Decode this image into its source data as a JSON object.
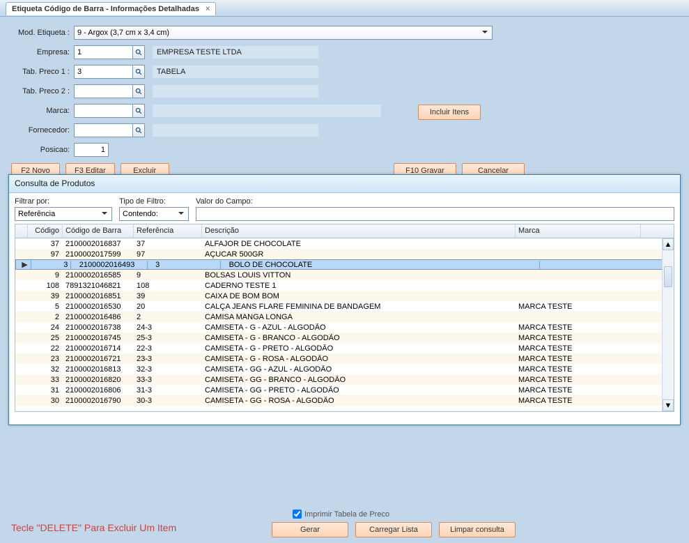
{
  "tab_title": "Etiqueta Código de Barra - Informações Detalhadas",
  "form": {
    "mod_label": "Mod. Etiqueta :",
    "mod_value": "9 - Argox (3,7 cm x 3,4 cm)",
    "empresa_label": "Empresa:",
    "empresa_code": "1",
    "empresa_desc": "EMPRESA TESTE LTDA",
    "tab1_label": "Tab. Preco 1 :",
    "tab1_code": "3",
    "tab1_desc": "TABELA",
    "tab2_label": "Tab. Preco 2 :",
    "tab2_code": "",
    "tab2_desc": "",
    "marca_label": "Marca:",
    "marca_code": "",
    "marca_desc": "",
    "forn_label": "Fornecedor:",
    "forn_code": "",
    "forn_desc": "",
    "pos_label": "Posicao:",
    "pos_value": "1",
    "btn_novo": "F2 Novo",
    "btn_editar": "F3 Editar",
    "btn_excluir": "Excluir",
    "btn_gravar": "F10 Gravar",
    "btn_cancelar": "Cancelar",
    "btn_incluir": "Incluir Itens"
  },
  "dialog": {
    "title": "Consulta de Produtos",
    "filtrar_label": "Filtrar por:",
    "filtrar_value": "Referência",
    "tipo_label": "Tipo de Filtro:",
    "tipo_value": "Contendo:",
    "valor_label": "Valor do Campo:",
    "valor_value": "",
    "cols": {
      "codigo": "Código",
      "barra": "Código de Barra",
      "ref": "Referência",
      "desc": "Descrição",
      "marca": "Marca"
    },
    "selected_index": 2,
    "rows": [
      {
        "cod": "37",
        "bar": "2100002016837",
        "ref": "37",
        "desc": "ALFAJOR DE CHOCOLATE",
        "marca": ""
      },
      {
        "cod": "97",
        "bar": "2100002017599",
        "ref": "97",
        "desc": "AÇUCAR 500GR",
        "marca": ""
      },
      {
        "cod": "3",
        "bar": "2100002016493",
        "ref": "3",
        "desc": "BOLO DE  CHOCOLATE",
        "marca": ""
      },
      {
        "cod": "9",
        "bar": "2100002016585",
        "ref": "9",
        "desc": "BOLSAS LOUIS VITTON",
        "marca": ""
      },
      {
        "cod": "108",
        "bar": "7891321046821",
        "ref": "108",
        "desc": "CADERNO TESTE 1",
        "marca": ""
      },
      {
        "cod": "39",
        "bar": "2100002016851",
        "ref": "39",
        "desc": "CAIXA DE BOM BOM",
        "marca": ""
      },
      {
        "cod": "5",
        "bar": "2100002016530",
        "ref": "20",
        "desc": "CALÇA JEANS FLARE FEMININA DE BANDAGEM",
        "marca": "MARCA TESTE"
      },
      {
        "cod": "2",
        "bar": "2100002016486",
        "ref": "2",
        "desc": "CAMISA MANGA LONGA",
        "marca": ""
      },
      {
        "cod": "24",
        "bar": "2100002016738",
        "ref": "24-3",
        "desc": "CAMISETA - G - AZUL - ALGODÃO",
        "marca": "MARCA TESTE"
      },
      {
        "cod": "25",
        "bar": "2100002016745",
        "ref": "25-3",
        "desc": "CAMISETA - G - BRANCO - ALGODÃO",
        "marca": "MARCA TESTE"
      },
      {
        "cod": "22",
        "bar": "2100002016714",
        "ref": "22-3",
        "desc": "CAMISETA - G - PRETO - ALGODÃO",
        "marca": "MARCA TESTE"
      },
      {
        "cod": "23",
        "bar": "2100002016721",
        "ref": "23-3",
        "desc": "CAMISETA - G - ROSA - ALGODÃO",
        "marca": "MARCA TESTE"
      },
      {
        "cod": "32",
        "bar": "2100002016813",
        "ref": "32-3",
        "desc": "CAMISETA - GG - AZUL - ALGODÃO",
        "marca": "MARCA TESTE"
      },
      {
        "cod": "33",
        "bar": "2100002016820",
        "ref": "33-3",
        "desc": "CAMISETA - GG - BRANCO - ALGODÃO",
        "marca": "MARCA TESTE"
      },
      {
        "cod": "31",
        "bar": "2100002016806",
        "ref": "31-3",
        "desc": "CAMISETA - GG - PRETO - ALGODÃO",
        "marca": "MARCA TESTE"
      },
      {
        "cod": "30",
        "bar": "2100002016790",
        "ref": "30-3",
        "desc": "CAMISETA - GG - ROSA - ALGODÃO",
        "marca": "MARCA TESTE"
      }
    ]
  },
  "footer": {
    "hint": "Tecle \"DELETE\" Para Excluir Um Item",
    "chk_label": "Imprimir Tabela de Preco",
    "chk_checked": true,
    "btn_gerar": "Gerar",
    "btn_carregar": "Carregar Lista",
    "btn_limpar": "Limpar consulta"
  }
}
